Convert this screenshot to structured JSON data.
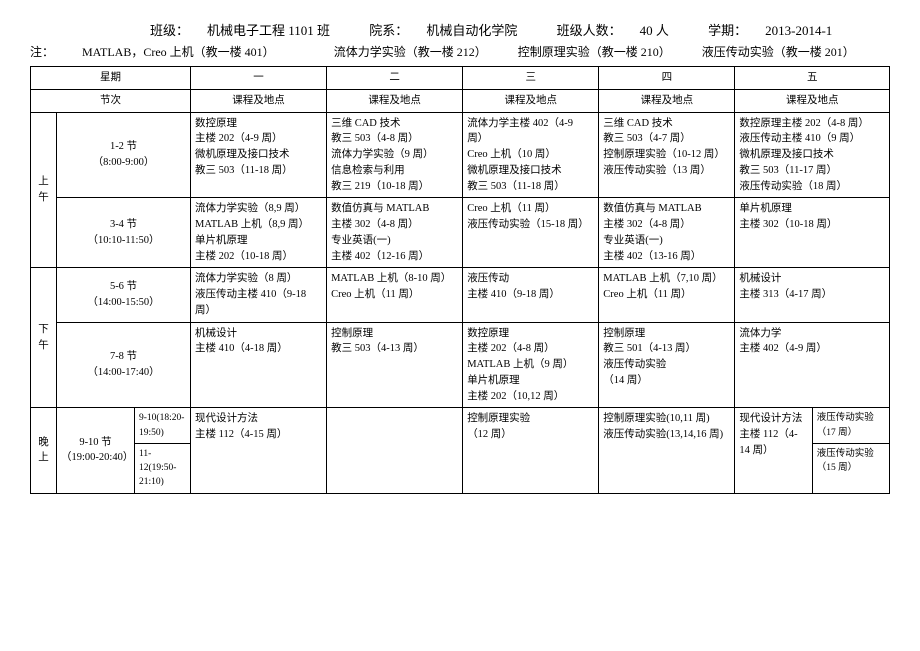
{
  "header": {
    "class_label": "班级：",
    "class_value": "机械电子工程 1101 班",
    "dept_label": "院系：",
    "dept_value": "机械自动化学院",
    "size_label": "班级人数：",
    "size_value": "40 人",
    "term_label": "学期：",
    "term_value": "2013-2014-1"
  },
  "note": {
    "prefix": "注：",
    "n1": "MATLAB，Creo 上机（教一楼 401）",
    "n2": "流体力学实验（教一楼 212）",
    "n3": "控制原理实验（教一楼 210）",
    "n4": "液压传动实验（教一楼 201）"
  },
  "day_header_label": "星期",
  "period_header_label": "节次",
  "course_loc_label": "课程及地点",
  "days": {
    "d1": "一",
    "d2": "二",
    "d3": "三",
    "d4": "四",
    "d5": "五"
  },
  "session": {
    "morning": "上午",
    "afternoon": "下午",
    "evening": "晚上"
  },
  "periods": {
    "p12": {
      "name": "1-2 节",
      "time": "（8:00-9:00）"
    },
    "p34": {
      "name": "3-4 节",
      "time": "（10:10-11:50）"
    },
    "p56": {
      "name": "5-6 节",
      "time": "（14:00-15:50）"
    },
    "p78": {
      "name": "7-8 节",
      "time": "（14:00-17:40）"
    },
    "p910": {
      "name": "9-10 节",
      "time": "（19:00-20:40）"
    },
    "p910sub": {
      "a": "9-10(18:20-19:50)",
      "b": "11-12(19:50-21:10)"
    }
  },
  "cells": {
    "r1c1": "数控原理\n主楼 202（4-9 周）\n微机原理及接口技术\n教三 503（11-18 周）",
    "r1c2": "三维 CAD 技术\n教三 503（4-8 周）\n流体力学实验（9 周）\n信息检索与利用\n教三 219（10-18 周）",
    "r1c3": "流体力学主楼 402（4-9 周）\nCreo 上机（10 周）\n微机原理及接口技术\n教三 503（11-18 周）",
    "r1c4": "三维 CAD 技术\n教三 503（4-7 周）\n控制原理实验（10-12 周）\n液压传动实验（13 周）",
    "r1c5": "数控原理主楼 202（4-8 周）\n液压传动主楼 410（9 周）\n微机原理及接口技术\n教三 503（11-17 周）\n液压传动实验（18 周）",
    "r2c1": "流体力学实验（8,9 周）\nMATLAB 上机（8,9 周）\n单片机原理\n主楼 202（10-18 周）",
    "r2c2": "数值仿真与 MATLAB\n主楼 302（4-8 周）\n专业英语(一)\n主楼 402（12-16 周）",
    "r2c3": "Creo 上机（11 周）\n液压传动实验（15-18 周）",
    "r2c4": "数值仿真与 MATLAB\n主楼 302（4-8 周）\n专业英语(一)\n主楼 402（13-16 周）",
    "r2c5": "单片机原理\n主楼 302（10-18 周）",
    "r3c1": "流体力学实验（8 周）\n液压传动主楼 410（9-18 周）",
    "r3c2": "MATLAB 上机（8-10 周）\nCreo 上机（11 周）",
    "r3c3": "液压传动\n主楼 410（9-18 周）",
    "r3c4": "MATLAB 上机（7,10 周）\nCreo 上机（11 周）",
    "r3c5": "机械设计\n主楼 313（4-17 周）",
    "r4c1": "机械设计\n主楼 410（4-18 周）",
    "r4c2": "控制原理\n教三 503（4-13 周）",
    "r4c3": "数控原理\n主楼 202（4-8 周）\nMATLAB 上机（9 周）\n单片机原理\n主楼 202（10,12 周）",
    "r4c4": "控制原理\n教三 501（4-13 周）\n液压传动实验\n（14 周）",
    "r4c5": "流体力学\n主楼 402（4-9 周）",
    "r5c1": "现代设计方法\n主楼 112（4-15 周）",
    "r5c2": "",
    "r5c3": "控制原理实验\n（12 周）",
    "r5c4": "控制原理实验(10,11 周)\n液压传动实验(13,14,16 周)",
    "r5c5a": "现代设计方法\n主楼 112（4-14 周）",
    "r5c5b_top": "液压传动实验（17 周）",
    "r5c5b_bot": "液压传动实验（15 周）"
  }
}
